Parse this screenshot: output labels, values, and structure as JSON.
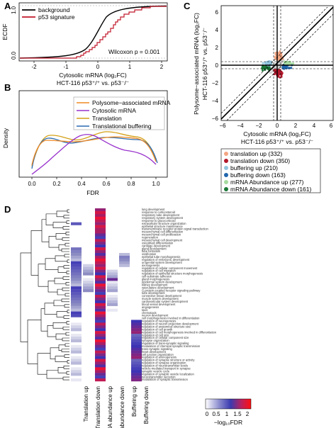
{
  "panels": {
    "A": {
      "letter": "A",
      "ylabel": "ECDF",
      "xlabel": "Cytosolic mRNA (log₂FC)",
      "xlabel2": "HCT-116 p53⁺/⁺ vs. p53⁻/⁻",
      "xticks": [
        "-2",
        "-1",
        "0",
        "1",
        "2"
      ],
      "yticks": [
        "0.0",
        "1.0"
      ],
      "annotation": "Wilcoxon p = 0.001",
      "legend": [
        {
          "label": "background",
          "color": "#000000"
        },
        {
          "label": "p53 signature",
          "color": "#c0182a"
        }
      ]
    },
    "B": {
      "letter": "B",
      "ylabel": "Density",
      "xlabel": "FDR",
      "xticks": [
        "0.0",
        "0.2",
        "0.4",
        "0.6",
        "0.8",
        "1.0"
      ],
      "legend": [
        {
          "label": "Polysome−associated mRNA",
          "color": "#f08a24"
        },
        {
          "label": "Cytosolic mRNA",
          "color": "#9933cc"
        },
        {
          "label": "Translation",
          "color": "#d4a017"
        },
        {
          "label": "Translational buffering",
          "color": "#2b6cb0"
        }
      ]
    },
    "C": {
      "letter": "C",
      "xlabel": "Cytosolic mRNA (log₂FC)",
      "xlabel2": "HCT-116 p53⁺/⁺ vs. p53⁻/⁻",
      "ylabel": "Polysome−associated mRNA (log₂FC)",
      "ylabel2": "HCT-116 p53⁺/⁺ vs. p53⁻/⁻",
      "xticks": [
        "−6",
        "−4",
        "−2",
        "0",
        "2",
        "4",
        "6"
      ],
      "yticks": [
        "−6",
        "−4",
        "−2",
        "0",
        "2",
        "4",
        "6"
      ],
      "legend": [
        {
          "label": "translation up (332)",
          "color": "#f4a582"
        },
        {
          "label": "translation down (350)",
          "color": "#b2182b"
        },
        {
          "label": "buffering up (210)",
          "color": "#92c5de"
        },
        {
          "label": "buffering down (163)",
          "color": "#2166ac"
        },
        {
          "label": "mRNA Abundance up (277)",
          "color": "#a6dba0"
        },
        {
          "label": "mRNA Abundance down (161)",
          "color": "#1b7837"
        }
      ]
    },
    "D": {
      "letter": "D",
      "columns": [
        "Translation up",
        "Translation down",
        "mRNA abundance up",
        "mRNA abundance down",
        "Buffering up",
        "Buffering down"
      ],
      "colorbar_ticks": [
        "0",
        "0.5",
        "1",
        "1.5",
        "2"
      ],
      "colorbar_label": "−log₁₀FDR",
      "terms": [
        "lung development",
        "response to corticosteroid",
        "respiratory tube development",
        "respiratory system development",
        "response to glucocorticoid",
        "extracellular structure organization",
        "epithelial structure maintenance",
        "transmembrane receptor protein signal transduction",
        "mesenchymal cell differentiation",
        "mesenchymal cell proliferation",
        "regeneration",
        "mesenchymal cell development",
        "osteoblast differentiation",
        "cartilage development",
        "gland development",
        "tube formation",
        "ossification",
        "epithelial tube morphogenesis",
        "regulation of embryonic development",
        "urogenital system development",
        "axonogenesis",
        "regulation of cellular component movement",
        "regulation of cell migration",
        "regulation of epithelial structure morphogenesis",
        "cell-substrate adhesion",
        "gland morphogenesis",
        "epidermal system development",
        "kidney development",
        "vasculature development",
        "G-protein coupled receptor signaling pathway",
        "tube development",
        "connective tissue development",
        "muscle system development",
        "cardiovascular system development",
        "blood vessel development",
        "angiogenesis",
        "taxis",
        "chemotaxis",
        "neuron development",
        "cell morphogenesis involved in differentiation",
        "regulation of neurogenesis",
        "regulation of neuron projection development",
        "regulation of anatomical structure size",
        "regulation of cell growth",
        "regulation of cell morphogenesis involved in differentiation",
        "regulation of cell size",
        "regulation of cellular component size",
        "synapse organization",
        "regulation of trans-synaptic signaling",
        "modulation of chemical synaptic transmission",
        "trans-synaptic signaling",
        "heart development",
        "cell junction organization",
        "regulation of axonogenesis",
        "regulation of synapse structure or activity",
        "regulation of synapse organization",
        "regulation of neurotransmitter levels",
        "vesicle-mediated transport in synapse",
        "synaptic vesicle cycle",
        "regulation of synaptic vesicle localization",
        "neurotransmitter secretion",
        "modulation of synaptic transmission"
      ]
    }
  }
}
